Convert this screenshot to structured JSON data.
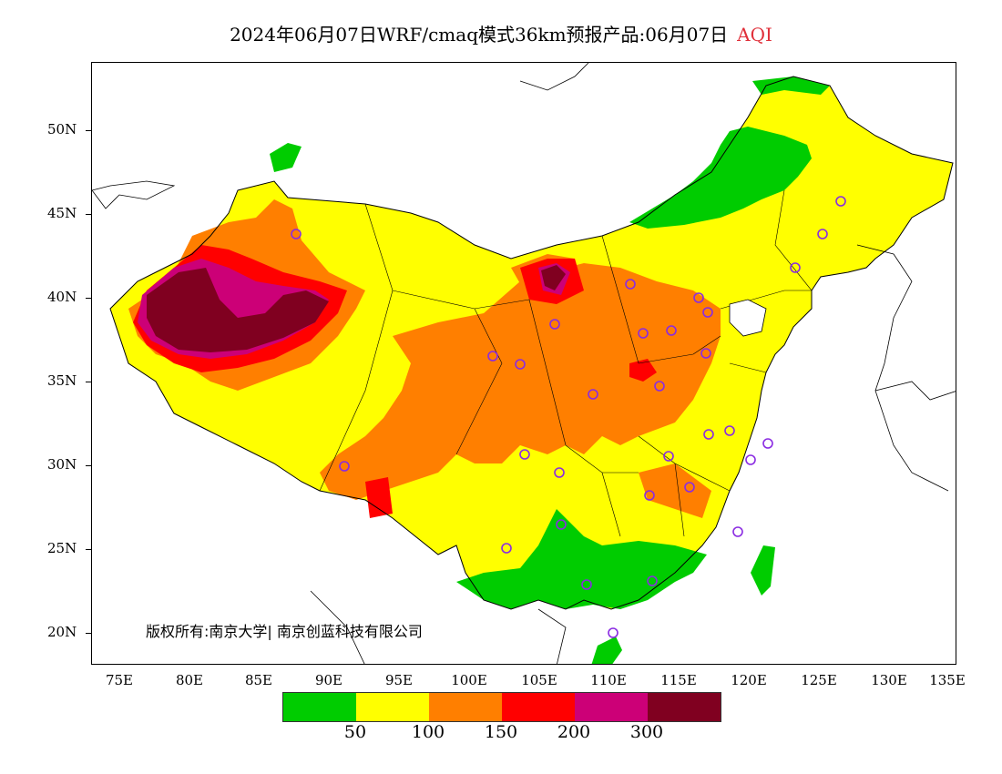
{
  "title": {
    "text": "2024年06月07日WRF/cmaq模式36km预报产品:06月07日",
    "variable": "AQI",
    "variable_color": "#e0303a"
  },
  "axes": {
    "lat_labels": [
      "50N",
      "45N",
      "40N",
      "35N",
      "30N",
      "25N",
      "20N"
    ],
    "lon_labels": [
      "75E",
      "80E",
      "85E",
      "90E",
      "95E",
      "100E",
      "105E",
      "110E",
      "115E",
      "120E",
      "125E",
      "130E",
      "135E"
    ]
  },
  "copyright": "版权所有:南京大学| 南京创蓝科技有限公司",
  "legend": {
    "colors": [
      "#00cc00",
      "#ffff00",
      "#ff7f00",
      "#ff0000",
      "#cc0077",
      "#800020"
    ],
    "labels": [
      "50",
      "100",
      "150",
      "200",
      "300"
    ]
  },
  "layers": {
    "good": "#00cc00",
    "moderate": "#ffff00",
    "sensitive": "#ff7f00",
    "unhealthy": "#ff0000",
    "very_unhealthy": "#cc0077",
    "hazardous": "#800020"
  }
}
